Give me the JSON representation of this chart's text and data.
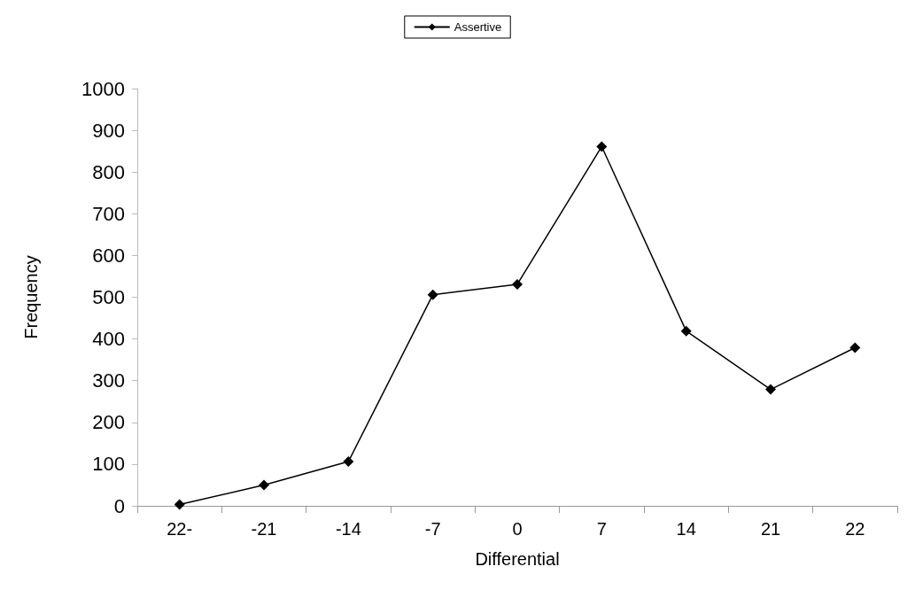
{
  "chart_data": {
    "type": "line",
    "xlabel": "Differential",
    "ylabel": "Frequency",
    "categories": [
      "22-",
      "-21",
      "-14",
      "-7",
      "0",
      "7",
      "14",
      "21",
      "22"
    ],
    "series": [
      {
        "name": "Assertive",
        "color": "#000000",
        "values": [
          3,
          50,
          106,
          506,
          531,
          861,
          419,
          279,
          379
        ]
      }
    ],
    "ylim": [
      0,
      1000
    ],
    "yticks": [
      0,
      100,
      200,
      300,
      400,
      500,
      600,
      700,
      800,
      900,
      1000
    ],
    "grid": false,
    "legend": "top",
    "marker": "diamond",
    "line_style": "solid"
  }
}
